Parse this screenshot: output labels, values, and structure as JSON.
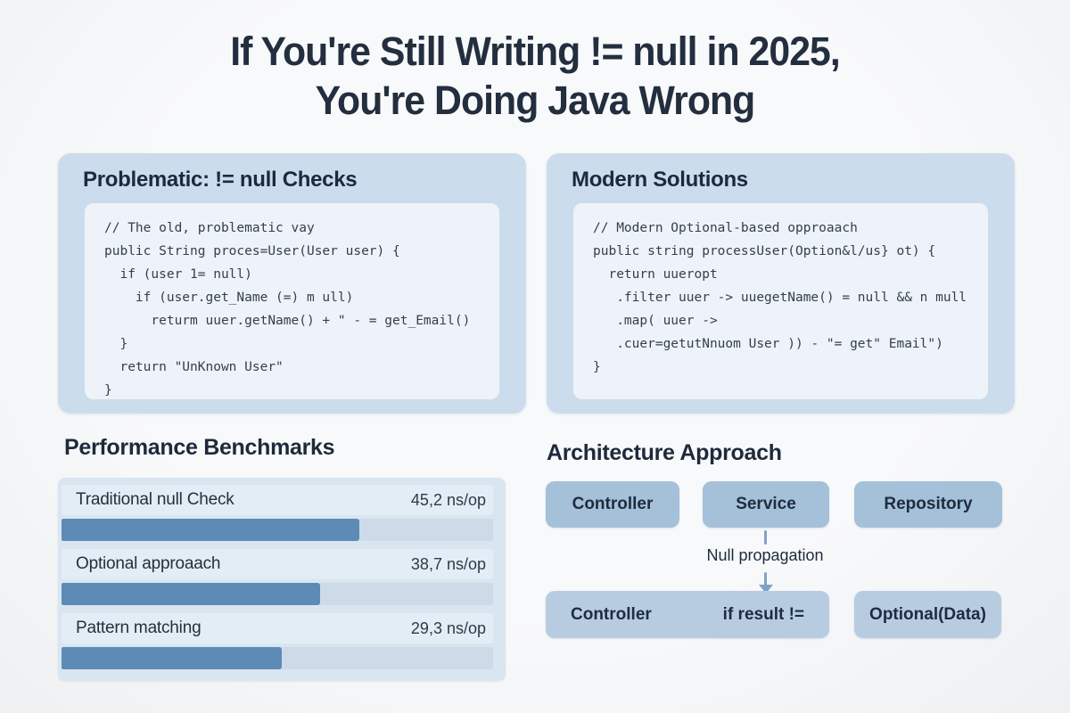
{
  "title": {
    "line1": "If You're Still Writing != null in 2025,",
    "line2": "You're Doing Java Wrong"
  },
  "panels": {
    "problematic": {
      "title": "Problematic: != null Checks",
      "code": [
        "// The old, problematic vay",
        "public String proces=User(User user) {",
        "  if (user 1= null)",
        "    if (user.get_Name (=) m ull)",
        "      returm uuer.getName() + \" - = get_Email()",
        "  }",
        "  return \"UnKnown User\"",
        "}"
      ]
    },
    "modern": {
      "title": "Modern Solutions",
      "code": [
        "// Modern Optional-based opproaach",
        "public string processUser(Option&l/us} ot) {",
        "  return uueropt",
        "   .filter uuer -> uuegetName() = null && n mull",
        "   .map( uuer ->",
        "   .cuer=getutNnuom User )) - \"= get\" Email\")",
        "}"
      ]
    }
  },
  "benchmarks": {
    "title": "Performance Benchmarks",
    "rows": [
      {
        "label": "Traditional null Check",
        "value": "45,2 ns/op",
        "percent": 69
      },
      {
        "label": "Optional approaach",
        "value": "38,7 ns/op",
        "percent": 60
      },
      {
        "label": "Pattern matching",
        "value": "29,3 ns/op",
        "percent": 51
      }
    ]
  },
  "architecture": {
    "title": "Architecture Approach",
    "layers": [
      "Controller",
      "Service",
      "Repository"
    ],
    "connector_label": "Null propagation",
    "result_box": {
      "left_label": "Controller",
      "right_label": "if result !="
    },
    "optional_box_label": "Optional(Data)"
  },
  "colors": {
    "panel_blue": "#cbddec",
    "code_bg": "#edf3f8",
    "bench_panel": "#d9e6f1",
    "bar_fill": "#5e8ab6",
    "bar_track": "#cddbe8",
    "arch_box_top": "#a5c0d9",
    "arch_box_bottom": "#b7cce1",
    "connector": "#7fa3c8",
    "title_text": "#232e3f"
  },
  "chart_data": {
    "type": "bar",
    "orientation": "horizontal",
    "title": "Performance Benchmarks",
    "categories": [
      "Traditional null Check",
      "Optional approaach",
      "Pattern matching"
    ],
    "values": [
      45.2,
      38.7,
      29.3
    ],
    "value_labels": [
      "45,2 ns/op",
      "38,7 ns/op",
      "29,3 ns/op"
    ],
    "unit": "ns/op",
    "legend": false,
    "grid": false
  }
}
